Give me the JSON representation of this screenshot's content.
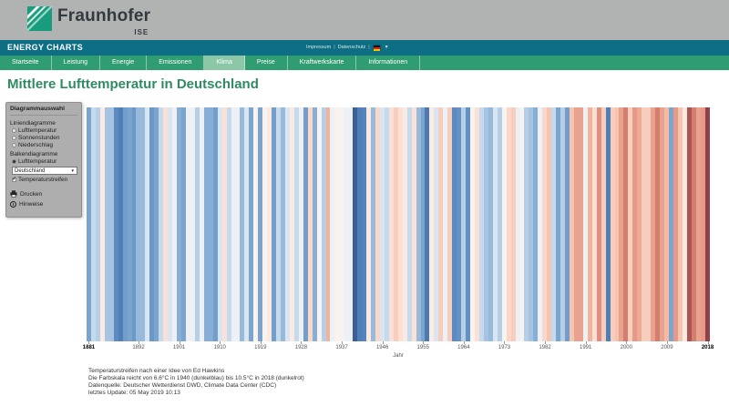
{
  "colors": {
    "header_gray": "#b1b3b3",
    "teal_bar": "#0d6e84",
    "nav_green": "#2f9c72",
    "active_tab_green": "#8cc7a8",
    "title_green": "#2e8b62",
    "fraunhofer_green": "#179c7d"
  },
  "header": {
    "brand": "Fraunhofer",
    "brand_sub": "ISE"
  },
  "topbar": {
    "title": "ENERGY CHARTS",
    "link_impressum": "Impressum",
    "link_datenschutz": "Datenschutz",
    "lang_flag": "german-flag"
  },
  "nav": {
    "tabs": [
      {
        "label": "Startseite",
        "active": false
      },
      {
        "label": "Leistung",
        "active": false
      },
      {
        "label": "Energie",
        "active": false
      },
      {
        "label": "Emissionen",
        "active": false
      },
      {
        "label": "Klima",
        "active": true
      },
      {
        "label": "Preise",
        "active": false
      },
      {
        "label": "Kraftwerkskarte",
        "active": false
      },
      {
        "label": "Informationen",
        "active": false
      }
    ]
  },
  "page": {
    "title": "Mittlere Lufttemperatur in Deutschland"
  },
  "sidebar": {
    "title": "Diagrammauswahl",
    "groups": [
      {
        "label": "Liniendiagramme",
        "options": [
          {
            "label": "Lufttemperatur",
            "selected": false
          },
          {
            "label": "Sonnenstunden",
            "selected": false
          },
          {
            "label": "Niederschlag",
            "selected": false
          }
        ]
      },
      {
        "label": "Balkendiagramme",
        "options": [
          {
            "label": "Lufttemperatur",
            "selected": true
          }
        ]
      }
    ],
    "region_select": {
      "value": "Deutschland"
    },
    "checkbox": {
      "label": "Temperaturstreifen",
      "checked": true
    },
    "actions": [
      {
        "label": "Drucken",
        "icon": "printer-icon"
      },
      {
        "label": "Hinweise",
        "icon": "info-icon"
      }
    ]
  },
  "chart_data": {
    "type": "bar",
    "subtype": "warming-stripes",
    "title": "Mittlere Lufttemperatur in Deutschland",
    "xlabel": "Jahr",
    "unit": "°C",
    "start_year": 1881,
    "end_year": 2018,
    "x_tick_labels": [
      1881,
      1892,
      1901,
      1910,
      1919,
      1928,
      1937,
      1946,
      1955,
      1964,
      1973,
      1982,
      1991,
      2000,
      2009,
      2018
    ],
    "values": [
      7.8,
      8.3,
      8.2,
      8.7,
      8.1,
      8.1,
      7.4,
      7.2,
      7.7,
      7.8,
      7.6,
      8.0,
      8.0,
      8.4,
      7.6,
      7.8,
      8.3,
      8.8,
      8.4,
      8.5,
      7.9,
      7.8,
      8.5,
      8.5,
      8.2,
      8.5,
      7.9,
      7.9,
      7.7,
      8.4,
      8.8,
      8.3,
      8.5,
      8.5,
      8.0,
      8.4,
      7.8,
      8.6,
      7.8,
      8.6,
      8.7,
      7.7,
      8.3,
      8.0,
      8.4,
      8.7,
      8.3,
      8.5,
      7.7,
      8.9,
      7.9,
      8.6,
      8.2,
      9.3,
      8.5,
      8.6,
      8.6,
      8.5,
      8.5,
      6.6,
      7.2,
      7.3,
      8.7,
      8.0,
      8.9,
      8.4,
      8.3,
      8.8,
      9.0,
      8.8,
      8.7,
      8.3,
      8.8,
      8.0,
      7.8,
      7.1,
      8.7,
      8.4,
      9.0,
      8.5,
      9.0,
      7.4,
      7.5,
      8.2,
      7.5,
      8.6,
      8.8,
      8.3,
      8.1,
      8.0,
      8.4,
      8.2,
      8.6,
      8.9,
      9.0,
      8.5,
      8.6,
      8.2,
      8.1,
      7.9,
      8.5,
      8.9,
      9.1,
      8.3,
      7.8,
      8.2,
      7.7,
      9.1,
      9.5,
      9.5,
      8.5,
      9.3,
      8.8,
      9.7,
      9.0,
      7.2,
      9.0,
      9.1,
      9.5,
      9.9,
      9.0,
      9.6,
      9.4,
      9.0,
      9.0,
      9.5,
      9.9,
      9.5,
      9.2,
      7.8,
      9.6,
      9.1,
      8.7,
      10.3,
      9.9,
      9.5,
      9.6,
      10.5
    ],
    "color_scale": {
      "min_value": 6.6,
      "max_value": 10.5,
      "min_color": "#3a5f94",
      "max_color": "#8f4049",
      "stops": [
        [
          0.0,
          "#3a5f94"
        ],
        [
          0.18,
          "#5484bd"
        ],
        [
          0.32,
          "#7fa8d1"
        ],
        [
          0.44,
          "#c8dcee"
        ],
        [
          0.5,
          "#f7f7f7"
        ],
        [
          0.56,
          "#fbe2d7"
        ],
        [
          0.68,
          "#f3b79f"
        ],
        [
          0.82,
          "#dd8877"
        ],
        [
          0.92,
          "#bc6059"
        ],
        [
          1.0,
          "#8f4049"
        ]
      ]
    },
    "legend": "none",
    "grid": false
  },
  "footer": {
    "lines": [
      "Temperaturstreifen nach einer Idee von Ed Hawkins",
      "Die Farbskala reicht von 6.6°C in 1940 (dunkelblau) bis 10.5°C in 2018 (dunkelrot)",
      "Datenquelle: Deutscher Wetterdienst DWD, Climate Data Center (CDC)",
      "letztes Update: 05 May 2019 10:13"
    ]
  }
}
